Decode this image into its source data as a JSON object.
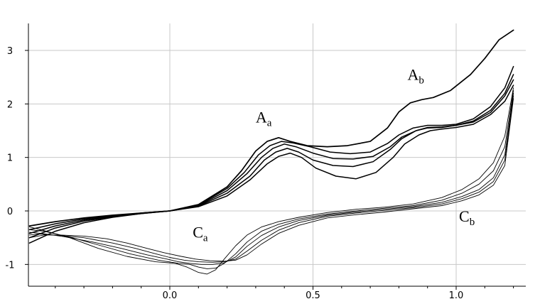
{
  "chart_data": {
    "type": "line",
    "title": "",
    "xlabel": "",
    "ylabel": "",
    "xlim": [
      -0.5,
      1.25
    ],
    "ylim": [
      -1.4,
      3.6
    ],
    "grid": true,
    "legend": "none",
    "x_ticks": [
      {
        "value": 0.0,
        "label": "0.0"
      },
      {
        "value": 0.5,
        "label": "0.5"
      },
      {
        "value": 1.0,
        "label": "1.0"
      }
    ],
    "y_ticks": [
      {
        "value": 3,
        "label": "3"
      },
      {
        "value": 2,
        "label": "2"
      },
      {
        "value": 1,
        "label": "1"
      },
      {
        "value": 0,
        "label": "0"
      },
      {
        "value": -1,
        "label": "-1"
      }
    ],
    "annotations": [
      {
        "main": "A",
        "sub": "a",
        "x": 0.3,
        "y": 1.65
      },
      {
        "main": "A",
        "sub": "b",
        "x": 0.83,
        "y": 2.45
      },
      {
        "main": "C",
        "sub": "a",
        "x": 0.08,
        "y": -0.5
      },
      {
        "main": "C",
        "sub": "b",
        "x": 1.01,
        "y": -0.2
      }
    ],
    "series": [
      {
        "color": "#000000",
        "width": 1.7,
        "x": [
          -0.49,
          -0.4,
          -0.3,
          -0.2,
          -0.1,
          0.0,
          0.1,
          0.2,
          0.25,
          0.3,
          0.34,
          0.38,
          0.42,
          0.48,
          0.55,
          0.62,
          0.7,
          0.76,
          0.8,
          0.84,
          0.88,
          0.92,
          0.98,
          1.05,
          1.1,
          1.15,
          1.2
        ],
        "y": [
          -0.28,
          -0.2,
          -0.13,
          -0.08,
          -0.04,
          0.0,
          0.12,
          0.45,
          0.75,
          1.12,
          1.3,
          1.37,
          1.3,
          1.22,
          1.2,
          1.22,
          1.3,
          1.55,
          1.85,
          2.02,
          2.08,
          2.12,
          2.25,
          2.55,
          2.85,
          3.2,
          3.38
        ]
      },
      {
        "color": "#000000",
        "width": 1.5,
        "x": [
          -0.49,
          -0.4,
          -0.3,
          -0.2,
          -0.1,
          0.0,
          0.1,
          0.2,
          0.26,
          0.31,
          0.35,
          0.39,
          0.43,
          0.49,
          0.56,
          0.63,
          0.7,
          0.76,
          0.8,
          0.85,
          0.9,
          0.95,
          1.0,
          1.06,
          1.12,
          1.17,
          1.2
        ],
        "y": [
          -0.35,
          -0.24,
          -0.15,
          -0.09,
          -0.04,
          0.0,
          0.11,
          0.42,
          0.72,
          1.05,
          1.22,
          1.3,
          1.27,
          1.2,
          1.1,
          1.07,
          1.1,
          1.26,
          1.42,
          1.55,
          1.6,
          1.6,
          1.62,
          1.72,
          1.95,
          2.3,
          2.7
        ]
      },
      {
        "color": "#000000",
        "width": 1.5,
        "x": [
          -0.49,
          -0.4,
          -0.3,
          -0.2,
          -0.1,
          0.0,
          0.1,
          0.2,
          0.27,
          0.32,
          0.36,
          0.4,
          0.44,
          0.5,
          0.57,
          0.64,
          0.71,
          0.77,
          0.81,
          0.86,
          0.9,
          0.95,
          1.0,
          1.06,
          1.12,
          1.17,
          1.2
        ],
        "y": [
          -0.42,
          -0.28,
          -0.17,
          -0.1,
          -0.04,
          0.0,
          0.1,
          0.38,
          0.7,
          1.0,
          1.17,
          1.25,
          1.2,
          1.08,
          0.98,
          0.97,
          1.02,
          1.2,
          1.38,
          1.5,
          1.56,
          1.57,
          1.6,
          1.68,
          1.88,
          2.2,
          2.55
        ]
      },
      {
        "color": "#000000",
        "width": 1.5,
        "x": [
          -0.49,
          -0.4,
          -0.3,
          -0.2,
          -0.1,
          0.0,
          0.1,
          0.2,
          0.28,
          0.33,
          0.37,
          0.41,
          0.45,
          0.5,
          0.57,
          0.64,
          0.71,
          0.77,
          0.81,
          0.86,
          0.9,
          0.95,
          1.0,
          1.06,
          1.12,
          1.17,
          1.2
        ],
        "y": [
          -0.5,
          -0.32,
          -0.19,
          -0.11,
          -0.05,
          0.0,
          0.09,
          0.33,
          0.65,
          0.95,
          1.1,
          1.17,
          1.1,
          0.95,
          0.85,
          0.83,
          0.92,
          1.15,
          1.35,
          1.5,
          1.55,
          1.56,
          1.6,
          1.66,
          1.84,
          2.15,
          2.45
        ]
      },
      {
        "color": "#000000",
        "width": 1.5,
        "x": [
          -0.49,
          -0.4,
          -0.3,
          -0.2,
          -0.1,
          0.0,
          0.1,
          0.2,
          0.28,
          0.34,
          0.38,
          0.42,
          0.46,
          0.51,
          0.58,
          0.65,
          0.72,
          0.78,
          0.82,
          0.87,
          0.91,
          0.95,
          1.0,
          1.06,
          1.12,
          1.17,
          1.2
        ],
        "y": [
          -0.6,
          -0.38,
          -0.22,
          -0.12,
          -0.05,
          0.0,
          0.08,
          0.28,
          0.58,
          0.88,
          1.02,
          1.08,
          1.0,
          0.8,
          0.65,
          0.6,
          0.72,
          1.0,
          1.25,
          1.42,
          1.5,
          1.53,
          1.56,
          1.62,
          1.8,
          2.05,
          2.35
        ]
      },
      {
        "color": "#000000",
        "width": 0.9,
        "x": [
          1.2,
          1.17,
          1.13,
          1.08,
          1.02,
          0.95,
          0.85,
          0.75,
          0.65,
          0.55,
          0.45,
          0.38,
          0.32,
          0.27,
          0.23,
          0.19,
          0.16,
          0.13,
          0.1,
          0.06,
          0.02,
          -0.05,
          -0.15,
          -0.25,
          -0.35,
          -0.45,
          -0.49
        ],
        "y": [
          2.3,
          1.4,
          0.9,
          0.6,
          0.4,
          0.25,
          0.13,
          0.07,
          0.03,
          -0.03,
          -0.12,
          -0.2,
          -0.3,
          -0.45,
          -0.65,
          -0.9,
          -1.1,
          -1.18,
          -1.15,
          -1.05,
          -0.98,
          -0.95,
          -0.85,
          -0.7,
          -0.5,
          -0.35,
          -0.3
        ]
      },
      {
        "color": "#000000",
        "width": 0.9,
        "x": [
          1.2,
          1.17,
          1.13,
          1.08,
          1.02,
          0.95,
          0.85,
          0.75,
          0.65,
          0.55,
          0.45,
          0.38,
          0.32,
          0.27,
          0.23,
          0.19,
          0.16,
          0.13,
          0.1,
          0.07,
          0.03,
          -0.04,
          -0.14,
          -0.24,
          -0.34,
          -0.44,
          -0.49
        ],
        "y": [
          2.25,
          1.2,
          0.75,
          0.5,
          0.33,
          0.2,
          0.1,
          0.05,
          0.0,
          -0.06,
          -0.15,
          -0.25,
          -0.38,
          -0.58,
          -0.8,
          -0.98,
          -1.07,
          -1.08,
          -1.05,
          -1.0,
          -0.98,
          -0.92,
          -0.8,
          -0.65,
          -0.5,
          -0.38,
          -0.35
        ]
      },
      {
        "color": "#000000",
        "width": 0.9,
        "x": [
          1.2,
          1.17,
          1.13,
          1.08,
          1.02,
          0.95,
          0.85,
          0.75,
          0.65,
          0.55,
          0.45,
          0.38,
          0.32,
          0.27,
          0.23,
          0.19,
          0.15,
          0.11,
          0.07,
          0.03,
          -0.01,
          -0.08,
          -0.17,
          -0.27,
          -0.37,
          -0.45,
          -0.49
        ],
        "y": [
          2.2,
          1.05,
          0.62,
          0.4,
          0.27,
          0.16,
          0.08,
          0.03,
          -0.02,
          -0.08,
          -0.18,
          -0.3,
          -0.46,
          -0.66,
          -0.86,
          -0.97,
          -1.0,
          -1.0,
          -0.98,
          -0.95,
          -0.9,
          -0.82,
          -0.7,
          -0.58,
          -0.48,
          -0.42,
          -0.4
        ]
      },
      {
        "color": "#000000",
        "width": 0.9,
        "x": [
          1.2,
          1.17,
          1.13,
          1.08,
          1.02,
          0.95,
          0.85,
          0.75,
          0.65,
          0.55,
          0.45,
          0.38,
          0.32,
          0.27,
          0.23,
          0.19,
          0.15,
          0.1,
          0.05,
          0.0,
          -0.05,
          -0.12,
          -0.2,
          -0.3,
          -0.4,
          -0.46,
          -0.49
        ],
        "y": [
          2.15,
          0.95,
          0.55,
          0.35,
          0.23,
          0.13,
          0.06,
          0.01,
          -0.04,
          -0.1,
          -0.22,
          -0.36,
          -0.55,
          -0.75,
          -0.9,
          -0.95,
          -0.96,
          -0.95,
          -0.92,
          -0.87,
          -0.8,
          -0.7,
          -0.6,
          -0.5,
          -0.45,
          -0.43,
          -0.45
        ]
      },
      {
        "color": "#000000",
        "width": 0.9,
        "x": [
          1.2,
          1.17,
          1.13,
          1.08,
          1.02,
          0.95,
          0.85,
          0.75,
          0.65,
          0.55,
          0.45,
          0.38,
          0.32,
          0.27,
          0.23,
          0.19,
          0.14,
          0.09,
          0.04,
          -0.02,
          -0.08,
          -0.15,
          -0.22,
          -0.3,
          -0.38,
          -0.44,
          -0.49
        ],
        "y": [
          2.1,
          0.85,
          0.48,
          0.3,
          0.19,
          0.1,
          0.04,
          -0.02,
          -0.07,
          -0.13,
          -0.27,
          -0.42,
          -0.62,
          -0.82,
          -0.92,
          -0.94,
          -0.93,
          -0.9,
          -0.85,
          -0.78,
          -0.7,
          -0.6,
          -0.52,
          -0.47,
          -0.45,
          -0.45,
          -0.5
        ]
      }
    ]
  }
}
